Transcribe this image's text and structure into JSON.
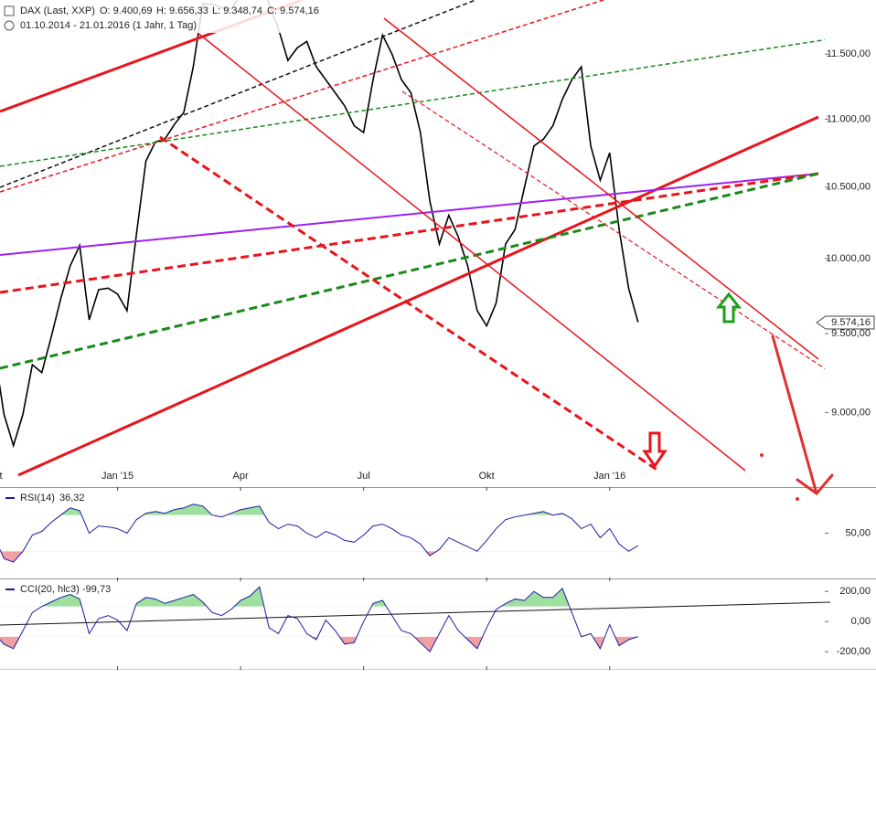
{
  "chart_data": [
    {
      "type": "line",
      "log": true,
      "color": "#000000",
      "title": "DAX (Last, XXP)",
      "ohlc_labels": [
        "O: 9.400,69",
        "H: 9.656,33",
        "L: 9.348,74",
        "C: 9.574,16"
      ],
      "subtitle": "01.10.2014 - 21.01.2016 (1 Jahr, 1 Tag)",
      "last_label": "9.574,16",
      "categories": [
        "Okt",
        null,
        null,
        null,
        null,
        null,
        null,
        null,
        null,
        null,
        null,
        null,
        null,
        "Jan '15",
        null,
        null,
        null,
        null,
        null,
        null,
        null,
        null,
        null,
        null,
        null,
        null,
        "Apr",
        null,
        null,
        null,
        null,
        null,
        null,
        null,
        null,
        null,
        null,
        null,
        null,
        "Jul",
        null,
        null,
        null,
        null,
        null,
        null,
        null,
        null,
        null,
        null,
        null,
        null,
        "Okt",
        null,
        null,
        null,
        null,
        null,
        null,
        null,
        null,
        null,
        null,
        null,
        null,
        "Jan '16",
        null,
        null,
        null
      ],
      "values": [
        9380,
        8990,
        8800,
        8990,
        9300,
        9250,
        9480,
        9730,
        9950,
        10090,
        9590,
        9790,
        9800,
        9760,
        9650,
        10170,
        10690,
        10830,
        10850,
        10960,
        11050,
        11400,
        11900,
        11900,
        11870,
        11860,
        11970,
        12200,
        12300,
        11900,
        11700,
        11450,
        11550,
        11600,
        11400,
        11300,
        11200,
        11100,
        10950,
        10900,
        11300,
        11650,
        11500,
        11300,
        11200,
        10900,
        10400,
        10100,
        10300,
        10150,
        9950,
        9650,
        9550,
        9700,
        10100,
        10200,
        10500,
        10800,
        10850,
        10950,
        11150,
        11300,
        11400,
        10800,
        10550,
        10750,
        10200,
        9800,
        9574.16
      ],
      "ylim": [
        8554,
        11933
      ],
      "yticks": [
        {
          "value": 9000,
          "label": "9.000,00"
        },
        {
          "value": 9500,
          "label": "9.500,00"
        },
        {
          "value": 10000,
          "label": "10.000,00"
        },
        {
          "value": 10500,
          "label": "10.500,00"
        },
        {
          "value": 11000,
          "label": "11.000,00"
        },
        {
          "value": 11500,
          "label": "11.500,00"
        }
      ]
    },
    {
      "type": "line",
      "color": "#1a1aa6",
      "title": "RSI(14)",
      "last_label": "36,32",
      "values": [
        45,
        22,
        18,
        30,
        48,
        52,
        62,
        70,
        78,
        75,
        50,
        58,
        57,
        55,
        50,
        65,
        72,
        74,
        72,
        76,
        78,
        82,
        80,
        70,
        68,
        72,
        76,
        78,
        80,
        62,
        55,
        60,
        58,
        50,
        45,
        52,
        48,
        42,
        40,
        48,
        58,
        60,
        55,
        48,
        45,
        38,
        25,
        32,
        45,
        40,
        35,
        30,
        42,
        55,
        65,
        68,
        70,
        72,
        74,
        70,
        72,
        66,
        55,
        60,
        45,
        55,
        38,
        30,
        36.32
      ],
      "bands": [
        30,
        70
      ],
      "ylim": [
        0,
        100
      ],
      "yticks": [
        {
          "value": 50,
          "label": "50,00"
        }
      ]
    },
    {
      "type": "line",
      "color": "#1a1aa6",
      "title": "CCI(20, hlc3)",
      "last_label": "-99,73",
      "values": [
        -80,
        -150,
        -180,
        -60,
        60,
        100,
        130,
        160,
        180,
        150,
        -80,
        20,
        40,
        10,
        -60,
        120,
        160,
        150,
        120,
        140,
        160,
        180,
        130,
        60,
        40,
        80,
        140,
        170,
        230,
        -40,
        -80,
        40,
        20,
        -80,
        -120,
        10,
        -60,
        -150,
        -140,
        0,
        120,
        140,
        40,
        -60,
        -80,
        -140,
        -200,
        -80,
        40,
        -60,
        -120,
        -180,
        -40,
        80,
        120,
        150,
        140,
        200,
        160,
        160,
        220,
        60,
        -100,
        -80,
        -180,
        -20,
        -160,
        -120,
        -99.73
      ],
      "bands": [
        -100,
        100
      ],
      "ylim": [
        -320,
        280
      ],
      "yticks": [
        {
          "value": -200,
          "label": "-200,00"
        },
        {
          "value": 0,
          "label": "0,00"
        },
        {
          "value": 200,
          "label": "200,00"
        }
      ]
    }
  ]
}
